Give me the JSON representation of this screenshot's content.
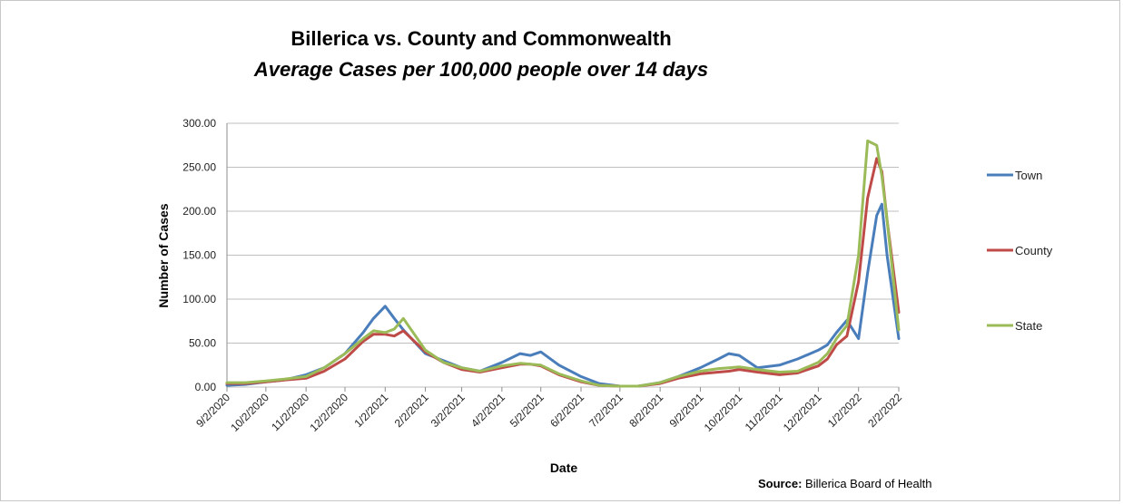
{
  "chart_data": {
    "type": "line",
    "title": "Billerica vs. County and Commonwealth",
    "subtitle": "Average Cases per 100,000 people over 14 days",
    "xlabel": "Date",
    "ylabel": "Number of Cases",
    "ylim": [
      0,
      300
    ],
    "yticks": [
      "0.00",
      "50.00",
      "100.00",
      "150.00",
      "200.00",
      "250.00",
      "300.00"
    ],
    "xtick_labels": [
      "9/2/2020",
      "10/2/2020",
      "11/2/2020",
      "12/2/2020",
      "1/2/2021",
      "2/2/2021",
      "3/2/2021",
      "4/2/2021",
      "5/2/2021",
      "6/2/2021",
      "7/2/2021",
      "8/2/2021",
      "9/2/2021",
      "10/2/2021",
      "11/2/2021",
      "12/2/2021",
      "1/2/2022",
      "2/2/2022"
    ],
    "grid": true,
    "legend_position": "right",
    "series": [
      {
        "name": "Town",
        "color": "#4a7ebb",
        "x": [
          "9/2/2020",
          "9/16/2020",
          "10/2/2020",
          "10/16/2020",
          "11/2/2020",
          "11/16/2020",
          "12/2/2020",
          "12/16/2020",
          "12/24/2020",
          "1/2/2021",
          "1/9/2021",
          "1/16/2021",
          "2/2/2021",
          "2/16/2021",
          "3/2/2021",
          "3/16/2021",
          "4/2/2021",
          "4/16/2021",
          "4/24/2021",
          "5/2/2021",
          "5/16/2021",
          "6/2/2021",
          "6/16/2021",
          "7/2/2021",
          "7/16/2021",
          "8/2/2021",
          "8/16/2021",
          "9/2/2021",
          "9/16/2021",
          "9/24/2021",
          "10/2/2021",
          "10/16/2021",
          "11/2/2021",
          "11/16/2021",
          "12/2/2021",
          "12/9/2021",
          "12/16/2021",
          "12/24/2021",
          "1/2/2022",
          "1/9/2022",
          "1/16/2022",
          "1/20/2022",
          "1/24/2022",
          "2/2/2022"
        ],
        "values": [
          2,
          3,
          6,
          8,
          14,
          22,
          38,
          62,
          78,
          92,
          78,
          65,
          38,
          30,
          22,
          18,
          28,
          38,
          36,
          40,
          25,
          12,
          4,
          1,
          1,
          5,
          12,
          22,
          32,
          38,
          36,
          22,
          25,
          32,
          42,
          48,
          62,
          76,
          55,
          130,
          195,
          208,
          150,
          55
        ]
      },
      {
        "name": "County",
        "color": "#be4b48",
        "x": [
          "9/2/2020",
          "9/16/2020",
          "10/2/2020",
          "10/16/2020",
          "11/2/2020",
          "11/16/2020",
          "12/2/2020",
          "12/16/2020",
          "12/24/2020",
          "1/2/2021",
          "1/9/2021",
          "1/16/2021",
          "2/2/2021",
          "2/16/2021",
          "3/2/2021",
          "3/16/2021",
          "4/2/2021",
          "4/16/2021",
          "4/24/2021",
          "5/2/2021",
          "5/16/2021",
          "6/2/2021",
          "6/16/2021",
          "7/2/2021",
          "7/16/2021",
          "8/2/2021",
          "8/16/2021",
          "9/2/2021",
          "9/16/2021",
          "9/24/2021",
          "10/2/2021",
          "10/16/2021",
          "11/2/2021",
          "11/16/2021",
          "12/2/2021",
          "12/9/2021",
          "12/16/2021",
          "12/24/2021",
          "1/2/2022",
          "1/9/2022",
          "1/16/2022",
          "1/20/2022",
          "1/24/2022",
          "2/2/2022"
        ],
        "values": [
          4,
          4,
          6,
          8,
          10,
          18,
          32,
          52,
          60,
          60,
          58,
          64,
          40,
          28,
          20,
          17,
          22,
          26,
          26,
          24,
          14,
          6,
          2,
          1,
          1,
          4,
          10,
          15,
          17,
          18,
          20,
          17,
          14,
          16,
          24,
          32,
          48,
          58,
          120,
          215,
          260,
          245,
          190,
          85
        ]
      },
      {
        "name": "State",
        "color": "#9bbb59",
        "x": [
          "9/2/2020",
          "9/16/2020",
          "10/2/2020",
          "10/16/2020",
          "11/2/2020",
          "11/16/2020",
          "12/2/2020",
          "12/16/2020",
          "12/24/2020",
          "1/2/2021",
          "1/9/2021",
          "1/16/2021",
          "2/2/2021",
          "2/16/2021",
          "3/2/2021",
          "3/16/2021",
          "4/2/2021",
          "4/16/2021",
          "4/24/2021",
          "5/2/2021",
          "5/16/2021",
          "6/2/2021",
          "6/16/2021",
          "7/2/2021",
          "7/16/2021",
          "8/2/2021",
          "8/16/2021",
          "9/2/2021",
          "9/16/2021",
          "9/24/2021",
          "10/2/2021",
          "10/16/2021",
          "11/2/2021",
          "11/16/2021",
          "12/2/2021",
          "12/9/2021",
          "12/16/2021",
          "12/24/2021",
          "1/2/2022",
          "1/9/2022",
          "1/16/2022",
          "1/20/2022",
          "1/24/2022",
          "2/2/2022"
        ],
        "values": [
          5,
          5,
          7,
          9,
          12,
          22,
          38,
          55,
          64,
          62,
          66,
          78,
          42,
          28,
          22,
          18,
          24,
          27,
          26,
          25,
          15,
          7,
          2,
          1,
          1,
          5,
          12,
          18,
          21,
          22,
          23,
          20,
          17,
          18,
          28,
          38,
          55,
          70,
          150,
          280,
          275,
          240,
          190,
          65
        ]
      }
    ]
  },
  "source": {
    "label": "Source:",
    "text": "Billerica Board of Health"
  }
}
